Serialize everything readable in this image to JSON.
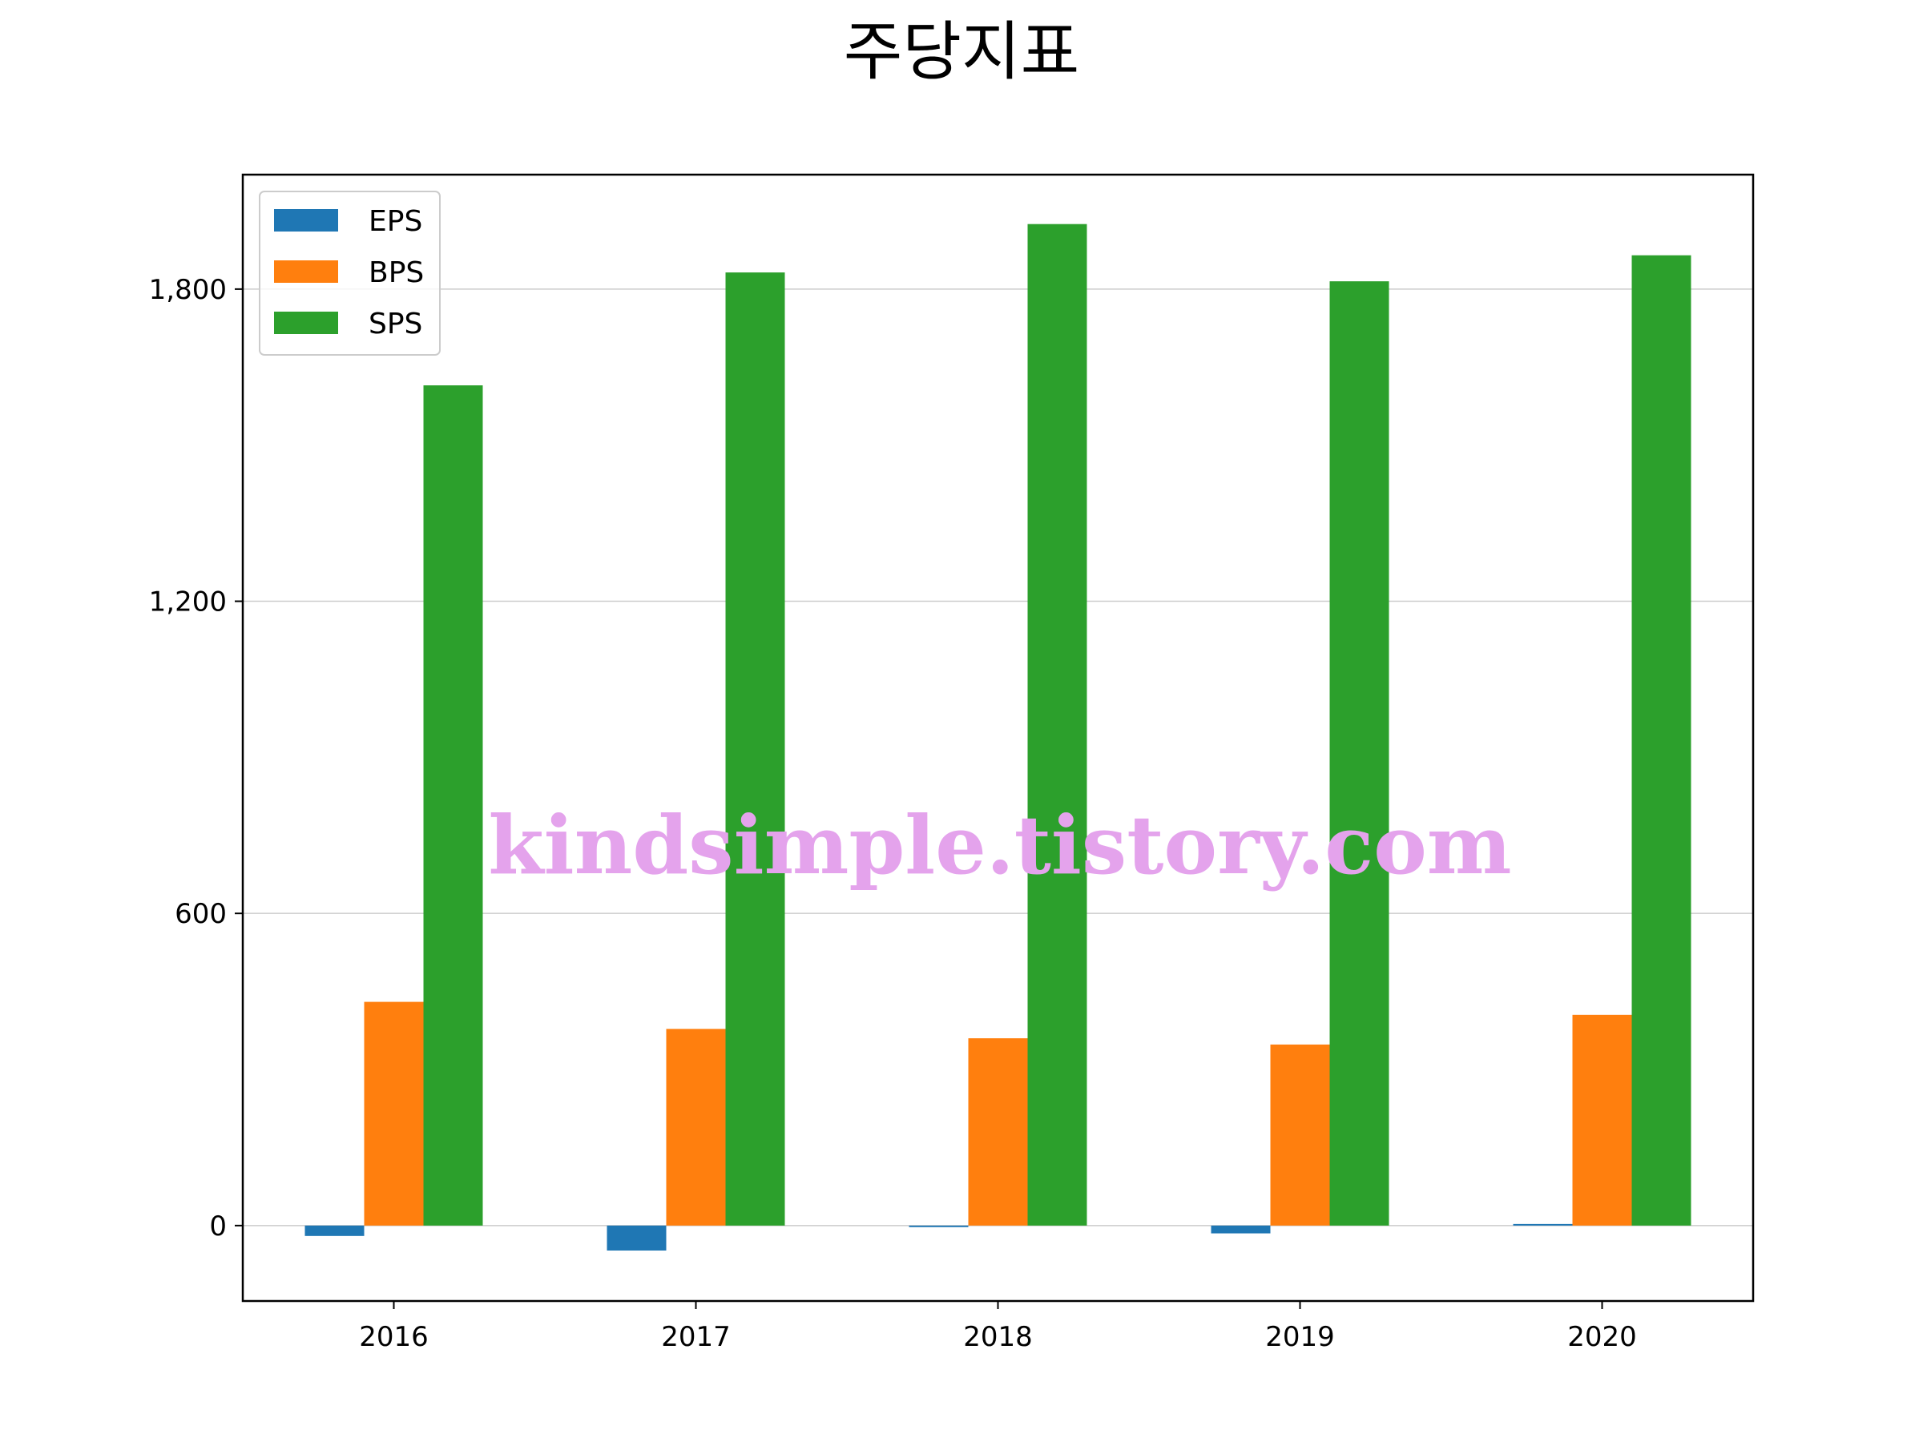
{
  "chart_data": {
    "type": "bar",
    "title": "주당지표",
    "xlabel": "",
    "ylabel": "",
    "categories": [
      "2016",
      "2017",
      "2018",
      "2019",
      "2020"
    ],
    "series": [
      {
        "name": "EPS",
        "color": "#1f77b4",
        "values": [
          -20,
          -48,
          -3,
          -15,
          3
        ]
      },
      {
        "name": "BPS",
        "color": "#ff7f0e",
        "values": [
          430,
          378,
          360,
          348,
          405
        ]
      },
      {
        "name": "SPS",
        "color": "#2ca02c",
        "values": [
          1615,
          1832,
          1925,
          1815,
          1865
        ]
      }
    ],
    "yticks": [
      0,
      600,
      1200,
      1800
    ],
    "ytick_labels": [
      "0",
      "600",
      "1,200",
      "1,800"
    ],
    "ylim": [
      -145,
      2020
    ],
    "grid": "y",
    "legend_position": "top-left",
    "watermark": "kindsimple.tistory.com"
  }
}
